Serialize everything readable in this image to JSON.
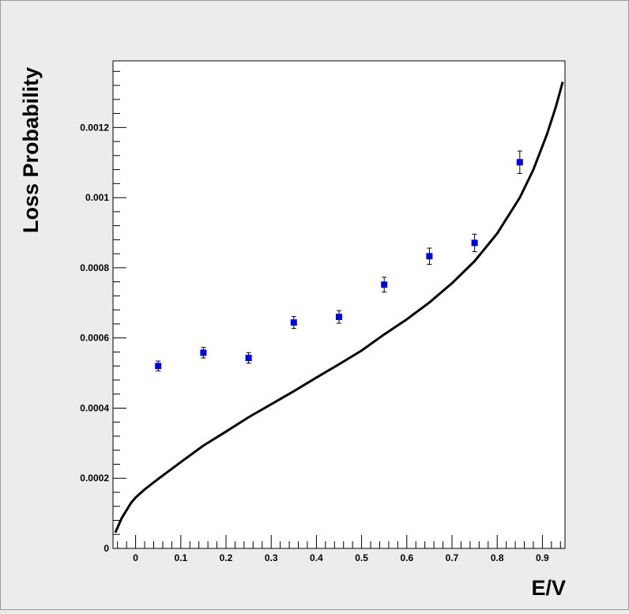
{
  "chart_data": {
    "type": "scatter",
    "title": "",
    "xlabel": "E/V",
    "ylabel": "Loss Probability",
    "xlim": [
      -0.05,
      0.95
    ],
    "ylim": [
      0,
      0.00139
    ],
    "x_ticks": [
      0,
      0.1,
      0.2,
      0.3,
      0.4,
      0.5,
      0.6,
      0.7,
      0.8,
      0.9
    ],
    "x_tick_labels": [
      "0",
      "0.1",
      "0.2",
      "0.3",
      "0.4",
      "0.5",
      "0.6",
      "0.7",
      "0.8",
      "0.9"
    ],
    "y_ticks": [
      0,
      0.0002,
      0.0004,
      0.0006,
      0.0008,
      0.001,
      0.0012
    ],
    "y_tick_labels": [
      "0",
      "0.0002",
      "0.0004",
      "0.0006",
      "0.0008",
      "0.001",
      "0.0012"
    ],
    "grid": false,
    "series": [
      {
        "kind": "points",
        "color": "#0000e0",
        "x": [
          0.05,
          0.15,
          0.25,
          0.35,
          0.45,
          0.55,
          0.65,
          0.75,
          0.85
        ],
        "y": [
          0.00052,
          0.000558,
          0.000543,
          0.000644,
          0.00066,
          0.000752,
          0.000833,
          0.000871,
          0.001101
        ],
        "err": [
          1.4e-05,
          1.5e-05,
          1.5e-05,
          1.7e-05,
          1.8e-05,
          2.1e-05,
          2.3e-05,
          2.5e-05,
          3.2e-05
        ]
      },
      {
        "kind": "line",
        "color": "#000000",
        "x": [
          -0.045,
          -0.03,
          -0.01,
          0.0,
          0.02,
          0.05,
          0.1,
          0.15,
          0.2,
          0.25,
          0.3,
          0.35,
          0.4,
          0.45,
          0.5,
          0.55,
          0.6,
          0.65,
          0.7,
          0.75,
          0.8,
          0.85,
          0.88,
          0.91,
          0.93,
          0.945
        ],
        "y": [
          4.5e-05,
          8.8e-05,
          0.00013,
          0.000145,
          0.000168,
          0.000198,
          0.000246,
          0.000293,
          0.000333,
          0.000374,
          0.000411,
          0.000448,
          0.000487,
          0.000525,
          0.000564,
          0.00061,
          0.000653,
          0.000701,
          0.000756,
          0.000819,
          0.000898,
          0.001,
          0.00108,
          0.00118,
          0.00126,
          0.00133
        ]
      }
    ]
  }
}
